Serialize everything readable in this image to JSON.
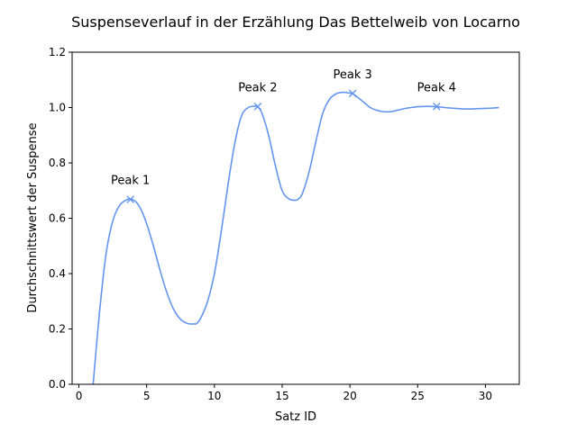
{
  "chart_data": {
    "type": "line",
    "title": "Suspenseverlauf in der Erzählung Das Bettelweib von Locarno",
    "xlabel": "Satz ID",
    "ylabel": "Durchschnittswert der Suspense",
    "xlim": [
      -0.5,
      32.5
    ],
    "ylim": [
      0.0,
      1.2
    ],
    "x_ticks": [
      0,
      5,
      10,
      15,
      20,
      25,
      30
    ],
    "y_ticks": [
      0.0,
      0.2,
      0.4,
      0.6,
      0.8,
      1.0,
      1.2
    ],
    "x_tick_labels": [
      "0",
      "5",
      "10",
      "15",
      "20",
      "25",
      "30"
    ],
    "y_tick_labels": [
      "0.0",
      "0.2",
      "0.4",
      "0.6",
      "0.8",
      "1.0",
      "1.2"
    ],
    "grid": false,
    "line_color": "#6495ED",
    "series": [
      {
        "x": [
          1.0,
          1.5,
          2.0,
          2.5,
          3.0,
          3.5,
          3.8,
          4.2,
          4.6,
          5.0,
          5.5,
          6.0,
          6.5,
          7.0,
          7.5,
          8.0,
          8.5,
          8.7,
          9.0,
          9.5,
          10.0,
          10.5,
          11.0,
          11.5,
          12.0,
          12.5,
          13.0,
          13.2,
          13.5,
          14.0,
          14.5,
          15.0,
          15.5,
          16.0,
          16.2,
          16.5,
          17.0,
          17.5,
          18.0,
          18.5,
          19.0,
          19.5,
          20.0,
          20.2,
          20.5,
          21.0,
          21.5,
          22.0,
          22.5,
          23.0,
          23.5,
          24.0,
          24.5,
          25.0,
          25.5,
          26.0,
          26.4,
          27.0,
          27.5,
          28.0,
          28.5,
          29.0,
          29.5,
          30.0,
          30.5,
          31.0
        ],
        "y": [
          -0.03,
          0.25,
          0.47,
          0.59,
          0.646,
          0.666,
          0.669,
          0.66,
          0.63,
          0.58,
          0.5,
          0.41,
          0.33,
          0.27,
          0.235,
          0.22,
          0.218,
          0.22,
          0.24,
          0.3,
          0.4,
          0.55,
          0.72,
          0.87,
          0.97,
          1.0,
          1.005,
          1.002,
          0.98,
          0.9,
          0.79,
          0.7,
          0.67,
          0.665,
          0.67,
          0.69,
          0.77,
          0.88,
          0.98,
          1.03,
          1.05,
          1.055,
          1.052,
          1.05,
          1.04,
          1.02,
          1.0,
          0.99,
          0.985,
          0.985,
          0.99,
          0.996,
          1.0,
          1.003,
          1.004,
          1.004,
          1.003,
          1.0,
          0.998,
          0.996,
          0.995,
          0.995,
          0.996,
          0.997,
          0.998,
          1.0
        ]
      }
    ],
    "peaks": [
      {
        "label": "Peak 1",
        "x": 3.8,
        "y": 0.668
      },
      {
        "label": "Peak 2",
        "x": 13.2,
        "y": 1.004
      },
      {
        "label": "Peak 3",
        "x": 20.2,
        "y": 1.051
      },
      {
        "label": "Peak 4",
        "x": 26.4,
        "y": 1.004
      }
    ]
  }
}
